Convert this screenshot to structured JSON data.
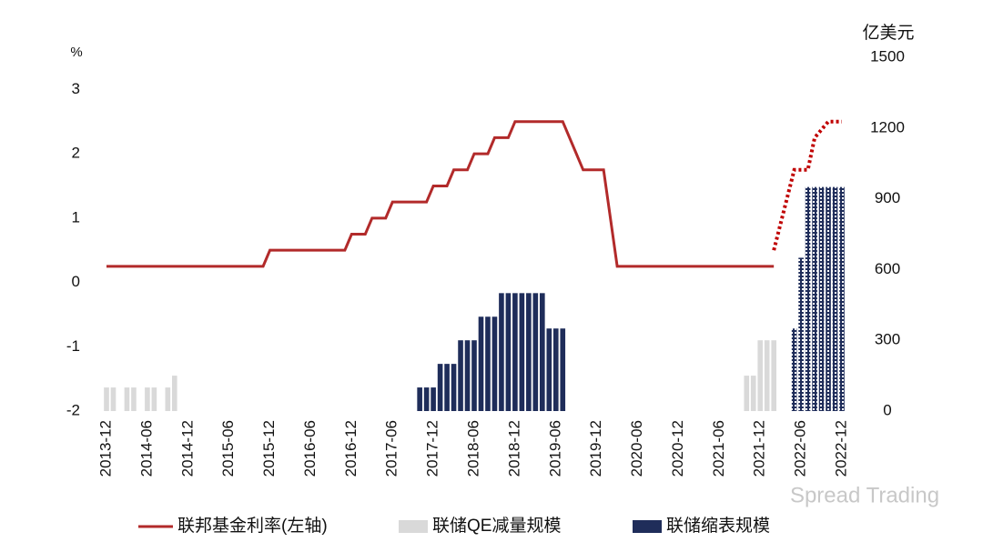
{
  "chart_data": {
    "type": "combo",
    "y_label": "%",
    "y2_label": "亿美元",
    "watermark": "Spread Trading",
    "xlim": [
      "2013-12",
      "2022-12"
    ],
    "xticks": [
      "2013-12",
      "2014-06",
      "2014-12",
      "2015-06",
      "2015-12",
      "2016-06",
      "2016-12",
      "2017-06",
      "2017-12",
      "2018-06",
      "2018-12",
      "2019-06",
      "2019-12",
      "2020-06",
      "2020-12",
      "2021-06",
      "2021-12",
      "2022-06",
      "2022-12"
    ],
    "ylim": [
      -2,
      3.5
    ],
    "yticks": [
      3,
      2,
      1,
      0,
      -1,
      -2
    ],
    "y2lim": [
      0,
      1500
    ],
    "y2ticks": [
      1500,
      1200,
      900,
      600,
      300,
      0
    ],
    "legend": "bottom",
    "series": [
      {
        "type": "line",
        "name": "联邦基金利率(左轴)",
        "color": "#b22a2a",
        "axis": "y",
        "x": [
          "2013-12",
          "2015-11",
          "2015-12",
          "2016-11",
          "2016-12",
          "2017-02",
          "2017-03",
          "2017-05",
          "2017-06",
          "2017-11",
          "2017-12",
          "2018-02",
          "2018-03",
          "2018-05",
          "2018-06",
          "2018-08",
          "2018-09",
          "2018-11",
          "2018-12",
          "2019-07",
          "2019-10",
          "2020-01",
          "2020-03",
          "2022-02"
        ],
        "values": [
          0.25,
          0.25,
          0.5,
          0.5,
          0.75,
          0.75,
          1.0,
          1.0,
          1.25,
          1.25,
          1.5,
          1.5,
          1.75,
          1.75,
          2.0,
          2.0,
          2.25,
          2.25,
          2.5,
          2.5,
          1.75,
          1.75,
          0.25,
          0.25
        ]
      },
      {
        "type": "line",
        "color": "#c00000",
        "axis": "y",
        "dash": "dotted",
        "x": [
          "2022-02",
          "2022-05",
          "2022-07",
          "2022-08",
          "2022-10",
          "2022-12"
        ],
        "values": [
          0.5,
          1.75,
          1.75,
          2.25,
          2.5,
          2.5
        ]
      },
      {
        "type": "bar",
        "name": "联储QE减量规模",
        "color": "#d9d9d9",
        "axis": "y2",
        "x": [
          "2013-12",
          "2014-01",
          "2014-03",
          "2014-04",
          "2014-06",
          "2014-07",
          "2014-09",
          "2014-10",
          "2021-10",
          "2021-11",
          "2021-12",
          "2022-01",
          "2022-02"
        ],
        "values": [
          100,
          100,
          100,
          100,
          100,
          100,
          100,
          150,
          150,
          150,
          300,
          300,
          300
        ]
      },
      {
        "type": "bar",
        "name": "联储缩表规模",
        "color": "#1f2d5a",
        "axis": "y2",
        "x": [
          "2017-10",
          "2017-11",
          "2017-12",
          "2018-01",
          "2018-02",
          "2018-03",
          "2018-04",
          "2018-05",
          "2018-06",
          "2018-07",
          "2018-08",
          "2018-09",
          "2018-10",
          "2018-11",
          "2018-12",
          "2019-01",
          "2019-02",
          "2019-03",
          "2019-04",
          "2019-05",
          "2019-06",
          "2019-07"
        ],
        "values": [
          100,
          100,
          100,
          200,
          200,
          200,
          300,
          300,
          300,
          400,
          400,
          400,
          500,
          500,
          500,
          500,
          500,
          500,
          500,
          350,
          350,
          350
        ]
      },
      {
        "type": "bar",
        "color": "#1f2d5a",
        "axis": "y2",
        "pattern": "hatched",
        "x": [
          "2022-05",
          "2022-06",
          "2022-07",
          "2022-08",
          "2022-09",
          "2022-10",
          "2022-11",
          "2022-12"
        ],
        "values": [
          350,
          650,
          950,
          950,
          950,
          950,
          950,
          950
        ]
      }
    ]
  }
}
